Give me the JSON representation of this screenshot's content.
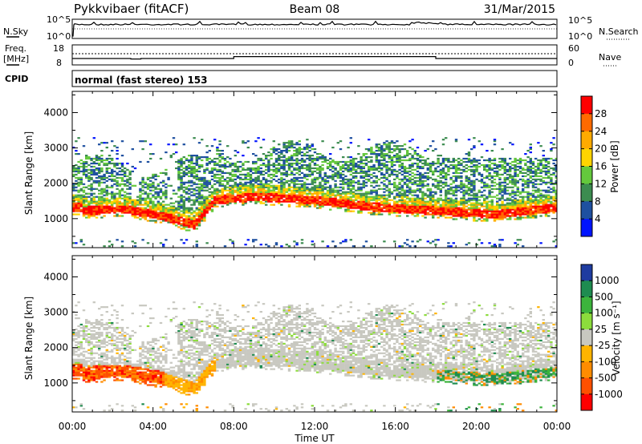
{
  "header": {
    "radar": "Pykkvibaer (fitACF)",
    "beam": "Beam 08",
    "date": "31/Mar/2015"
  },
  "noise_panel": {
    "left_label": "N.Sky",
    "right_label": "N.Search",
    "ticks": [
      "10^5",
      "10^0"
    ]
  },
  "freq_panel": {
    "left_label_1": "Freq.",
    "left_label_2": "[MHz]",
    "left_ticks": [
      "18",
      "8"
    ],
    "right_label": "Nave",
    "right_ticks": [
      "60",
      "0"
    ],
    "frequency_steps_mhz": [
      {
        "from_hour": 0,
        "to_hour": 2.9,
        "value": 10
      },
      {
        "from_hour": 2.9,
        "to_hour": 3.4,
        "value": 9.5
      },
      {
        "from_hour": 3.4,
        "to_hour": 8.0,
        "value": 10
      },
      {
        "from_hour": 8.0,
        "to_hour": 18.0,
        "value": 12
      },
      {
        "from_hour": 18.0,
        "to_hour": 24.0,
        "value": 10
      }
    ]
  },
  "cpid_panel": {
    "label": "CPID",
    "text": "normal (fast stereo) 153"
  },
  "chart_data": [
    {
      "type": "heatmap",
      "panel": "power",
      "ylabel": "Slant Range [km]",
      "xlabel": "Time UT",
      "xlim_hours": [
        0,
        24
      ],
      "ylim_km": [
        180,
        4600
      ],
      "x_ticks": [
        "00:00",
        "04:00",
        "08:00",
        "12:00",
        "16:00",
        "20:00",
        "00:00"
      ],
      "y_ticks": [
        "1000",
        "2000",
        "3000",
        "4000"
      ],
      "colorbar": {
        "label": "Power [dB]",
        "ticks": [
          "28",
          "24",
          "20",
          "16",
          "12",
          "8",
          "4"
        ],
        "colors": [
          "#ff0000",
          "#ff6a00",
          "#ffaa00",
          "#ffd400",
          "#64c83c",
          "#3c8c50",
          "#1e50a0",
          "#0014ff"
        ]
      },
      "strong_echo_band_km": [
        {
          "hour": 0.5,
          "range": 1200
        },
        {
          "hour": 2.5,
          "range": 1250
        },
        {
          "hour": 4.5,
          "range": 1050
        },
        {
          "hour": 6.0,
          "range": 800
        },
        {
          "hour": 7.0,
          "range": 1500
        },
        {
          "hour": 9.0,
          "range": 1600
        },
        {
          "hour": 12.0,
          "range": 1500
        },
        {
          "hour": 15.0,
          "range": 1300
        },
        {
          "hour": 18.0,
          "range": 1200
        },
        {
          "hour": 21.0,
          "range": 1100
        },
        {
          "hour": 24.0,
          "range": 1300
        }
      ]
    },
    {
      "type": "heatmap",
      "panel": "velocity",
      "ylabel": "Slant Range [km]",
      "xlabel": "Time UT",
      "xlim_hours": [
        0,
        24
      ],
      "ylim_km": [
        180,
        4600
      ],
      "x_ticks": [
        "00:00",
        "04:00",
        "08:00",
        "12:00",
        "16:00",
        "20:00",
        "00:00"
      ],
      "y_ticks": [
        "1000",
        "2000",
        "3000",
        "4000"
      ],
      "colorbar": {
        "label": "Velocity [m s⁻¹]",
        "ticks": [
          "1000",
          "500",
          "100",
          "25",
          "-25",
          "-100",
          "-500",
          "-1000"
        ],
        "colors": [
          "#1e3ca0",
          "#1e8c50",
          "#3cb43c",
          "#8cdc3c",
          "#c8c8c0",
          "#ffb400",
          "#ff8c00",
          "#ff5000",
          "#ff0000"
        ]
      }
    }
  ]
}
